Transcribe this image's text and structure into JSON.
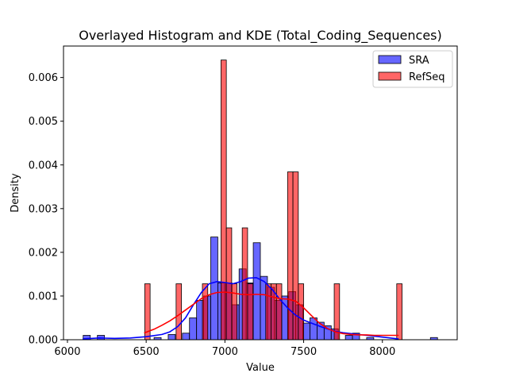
{
  "chart_data": {
    "type": "histogram",
    "title": "Overlayed Histogram and KDE (Total_Coding_Sequences)",
    "xlabel": "Value",
    "ylabel": "Density",
    "xlim": [
      5975,
      8475
    ],
    "ylim": [
      0,
      0.00672
    ],
    "x_ticks": [
      6000,
      6500,
      7000,
      7500,
      8000
    ],
    "y_ticks": [
      0,
      0.001,
      0.002,
      0.003,
      0.004,
      0.005,
      0.006
    ],
    "x_tick_labels": [
      "6000",
      "6500",
      "7000",
      "7500",
      "8000"
    ],
    "y_tick_labels": [
      "0.000",
      "0.001",
      "0.002",
      "0.003",
      "0.004",
      "0.005",
      "0.006"
    ],
    "legend": {
      "position": "upper right"
    },
    "series": [
      {
        "name": "SRA",
        "color": "#0000ff",
        "bar_alpha": 0.6,
        "bin_width": 45,
        "bins": [
          {
            "x0": 6100,
            "value": 0.0001
          },
          {
            "x0": 6190,
            "value": 0.0001
          },
          {
            "x0": 6550,
            "value": 5e-05
          },
          {
            "x0": 6640,
            "value": 0.00012
          },
          {
            "x0": 6730,
            "value": 0.00015
          },
          {
            "x0": 6775,
            "value": 0.0005
          },
          {
            "x0": 6820,
            "value": 0.0009
          },
          {
            "x0": 6865,
            "value": 0.001
          },
          {
            "x0": 6910,
            "value": 0.00235
          },
          {
            "x0": 6955,
            "value": 0.0013
          },
          {
            "x0": 7000,
            "value": 0.0013
          },
          {
            "x0": 7045,
            "value": 0.0008
          },
          {
            "x0": 7090,
            "value": 0.00162
          },
          {
            "x0": 7135,
            "value": 0.0013
          },
          {
            "x0": 7180,
            "value": 0.00222
          },
          {
            "x0": 7225,
            "value": 0.00145
          },
          {
            "x0": 7270,
            "value": 0.0012
          },
          {
            "x0": 7315,
            "value": 0.0009
          },
          {
            "x0": 7360,
            "value": 0.001
          },
          {
            "x0": 7405,
            "value": 0.0011
          },
          {
            "x0": 7450,
            "value": 0.0008
          },
          {
            "x0": 7495,
            "value": 0.00038
          },
          {
            "x0": 7540,
            "value": 0.0005
          },
          {
            "x0": 7585,
            "value": 0.0004
          },
          {
            "x0": 7630,
            "value": 0.00032
          },
          {
            "x0": 7675,
            "value": 0.00025
          },
          {
            "x0": 7765,
            "value": 0.0001
          },
          {
            "x0": 7810,
            "value": 0.00015
          },
          {
            "x0": 7900,
            "value": 5e-05
          },
          {
            "x0": 8305,
            "value": 5e-05
          }
        ],
        "kde": {
          "x": [
            6100,
            6200,
            6300,
            6400,
            6500,
            6600,
            6650,
            6700,
            6750,
            6800,
            6850,
            6900,
            6950,
            7000,
            7050,
            7100,
            7150,
            7200,
            7250,
            7300,
            7350,
            7400,
            7450,
            7500,
            7550,
            7600,
            7650,
            7700,
            7750,
            7800,
            7850,
            7900,
            7950,
            8000,
            8050,
            8100
          ],
          "y": [
            2e-05,
            4e-05,
            3e-05,
            4e-05,
            7e-05,
            0.00012,
            0.00018,
            0.0003,
            0.0005,
            0.0008,
            0.00108,
            0.00128,
            0.00133,
            0.00131,
            0.00128,
            0.00133,
            0.00141,
            0.00142,
            0.00133,
            0.00115,
            0.00092,
            0.00072,
            0.00056,
            0.00045,
            0.00038,
            0.00031,
            0.00025,
            0.00019,
            0.00016,
            0.00014,
            0.00012,
            0.0001,
            8e-05,
            6e-05,
            4e-05,
            2e-05
          ]
        }
      },
      {
        "name": "RefSeq",
        "color": "#ff0000",
        "bar_alpha": 0.6,
        "bin_width": 34,
        "bins": [
          {
            "x0": 6491,
            "value": 0.00128
          },
          {
            "x0": 6690,
            "value": 0.00128
          },
          {
            "x0": 6857,
            "value": 0.00128
          },
          {
            "x0": 6975,
            "value": 0.0064
          },
          {
            "x0": 7009,
            "value": 0.00256
          },
          {
            "x0": 7043,
            "value": 0.00128
          },
          {
            "x0": 7110,
            "value": 0.00256
          },
          {
            "x0": 7144,
            "value": 0.00128
          },
          {
            "x0": 7259,
            "value": 0.00128
          },
          {
            "x0": 7293,
            "value": 0.00128
          },
          {
            "x0": 7327,
            "value": 0.00128
          },
          {
            "x0": 7398,
            "value": 0.00384
          },
          {
            "x0": 7432,
            "value": 0.00384
          },
          {
            "x0": 7466,
            "value": 0.00128
          },
          {
            "x0": 7694,
            "value": 0.00128
          },
          {
            "x0": 8091,
            "value": 0.00128
          }
        ],
        "kde": {
          "x": [
            6490,
            6550,
            6600,
            6650,
            6700,
            6750,
            6800,
            6850,
            6900,
            6950,
            7000,
            7050,
            7100,
            7150,
            7200,
            7250,
            7300,
            7350,
            7400,
            7450,
            7500,
            7550,
            7600,
            7650,
            7700,
            7750,
            7800,
            7850,
            7900,
            7950,
            8000,
            8050,
            8100
          ],
          "y": [
            0.00016,
            0.00024,
            0.00033,
            0.00043,
            0.00055,
            0.00068,
            0.00081,
            0.00094,
            0.00103,
            0.00108,
            0.00109,
            0.00107,
            0.00104,
            0.00103,
            0.00104,
            0.00103,
            0.00098,
            0.00094,
            0.00093,
            0.00088,
            0.00073,
            0.00055,
            0.00038,
            0.00026,
            0.00018,
            0.00014,
            0.00012,
            0.00011,
            0.00011,
            0.0001,
            0.0001,
            0.0001,
            0.0001
          ]
        }
      }
    ]
  }
}
